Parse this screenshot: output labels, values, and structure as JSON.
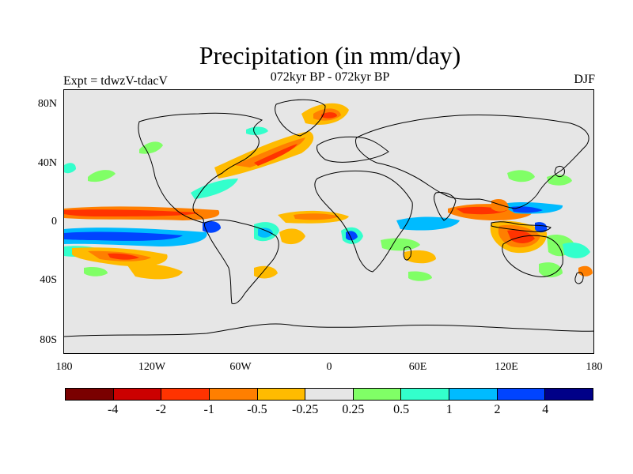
{
  "title": "Precipitation (in mm/day)",
  "subtitle": "072kyr BP - 072kyr BP",
  "experiment": "Expt = tdwzV-tdacV",
  "season": "DJF",
  "lat_labels": [
    "80N",
    "40N",
    "0",
    "40S",
    "80S"
  ],
  "lon_labels": [
    "180",
    "120W",
    "60W",
    "0",
    "60E",
    "120E",
    "180"
  ],
  "colorbar": {
    "colors": [
      "#7a0000",
      "#cc0000",
      "#ff3300",
      "#ff7f00",
      "#ffbb00",
      "#e6e6e6",
      "#80ff66",
      "#33ffcc",
      "#00bbff",
      "#0044ff",
      "#000088"
    ],
    "labels": [
      "-4",
      "-2",
      "-1",
      "-0.5",
      "-0.25",
      "0.25",
      "0.5",
      "1",
      "2",
      "4"
    ]
  },
  "colors": {
    "background": "#e6e6e6",
    "coastline": "#000000"
  }
}
